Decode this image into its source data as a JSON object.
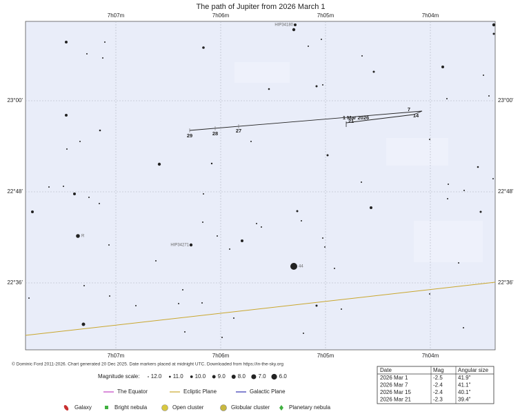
{
  "title": "The path of Jupiter from 2026 March 1",
  "axes": {
    "ra_labels": [
      "7h07m",
      "7h06m",
      "7h05m",
      "7h04m"
    ],
    "dec_labels": [
      "23°00'",
      "22°48'",
      "22°36'"
    ]
  },
  "star_labels": [
    "HIP34180",
    "HIP34271",
    "R",
    "44"
  ],
  "path_labels": [
    "1 Mar 2026",
    "7",
    "14",
    "21",
    "27",
    "28",
    "29"
  ],
  "credit": "© Dominic Ford 2011-2026. Chart generated 20 Dec 2025. Date markers placed at midnight UTC. Downloaded from https://in-the-sky.org",
  "magnitude_scale": {
    "label": "Magnitude scale:",
    "values": [
      "12.0",
      "11.0",
      "10.0",
      "9.0",
      "8.0",
      "7.0",
      "6.0"
    ]
  },
  "lines_legend": [
    "The Equator",
    "Ecliptic Plane",
    "Galactic Plane"
  ],
  "objects_legend": [
    "Galaxy",
    "Bright nebula",
    "Open cluster",
    "Globular cluster",
    "Planetary nebula"
  ],
  "table": {
    "header": [
      "Date",
      "Mag",
      "Angular size"
    ],
    "rows": [
      [
        "2026 Mar 1",
        "-2.5",
        "41.9\""
      ],
      [
        "2026 Mar 7",
        "-2.4",
        "41.1\""
      ],
      [
        "2026 Mar 15",
        "-2.4",
        "40.1\""
      ],
      [
        "2026 Mar 21",
        "-2.3",
        "39.4\""
      ]
    ]
  }
}
